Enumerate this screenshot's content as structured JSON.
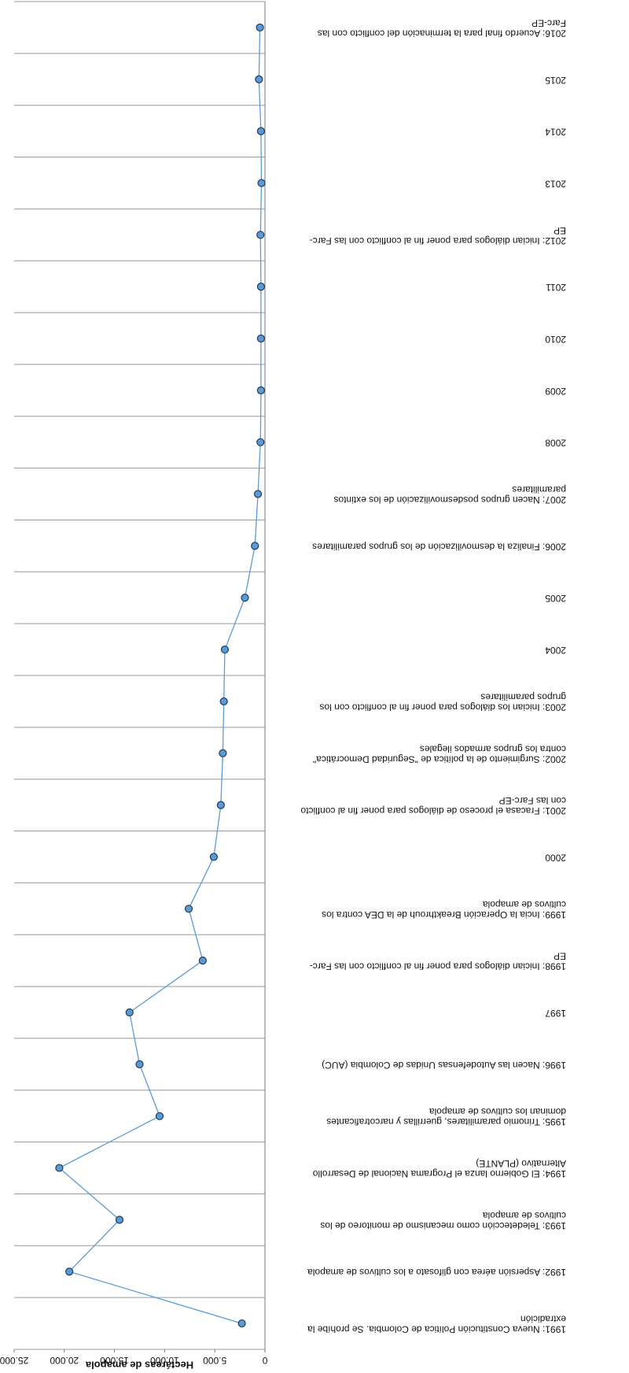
{
  "chart_data": {
    "type": "line",
    "rotated": "180deg",
    "ylabel": "Hectáreas de amapola",
    "ylim": [
      0,
      25000
    ],
    "yticks": [
      {
        "v": 0,
        "label": "0"
      },
      {
        "v": 5000,
        "label": "5.000"
      },
      {
        "v": 10000,
        "label": "10.000"
      },
      {
        "v": 15000,
        "label": "15.000"
      },
      {
        "v": 20000,
        "label": "20.000"
      },
      {
        "v": 25000,
        "label": "25.000"
      }
    ],
    "grid": true,
    "legend": "none",
    "colors": {
      "line": "#5b9bd5",
      "marker_fill": "#5b9bd5",
      "marker_stroke": "#1f3a5a",
      "grid": "#9a9a9a"
    },
    "categories": [
      [
        "1991: Nueva Constitución Política de Colombia. Se prohíbe la",
        "extradición"
      ],
      [
        "1992: Aspersión aérea con glifosato a los cultivos de amapola"
      ],
      [
        "1993: Teledetección como mecanismo de monitoreo de los",
        "cultivos de amapola"
      ],
      [
        "1994: El Gobierno lanza el Programa Nacional de Desarrollo",
        "Alternativo (PLANTE)"
      ],
      [
        "1995: Trinomio paramilitares, guerrillas y narcotraficantes",
        "dominan los cultivos de amapola"
      ],
      [
        "1996: Nacen las Autodefensas Unidas de Colombia (AUC)"
      ],
      [
        "1997"
      ],
      [
        "1998: Inician diálogos para poner fin al conflicto con las Farc-",
        "EP"
      ],
      [
        "1999: Incia la Operación Breakthrouh de la DEA contra los",
        "cultivos de amapola"
      ],
      [
        "2000"
      ],
      [
        "2001: Fracasa el proceso de diálogos para poner fin al conflicto",
        "con las Farc-EP"
      ],
      [
        "2002: Surgimiento de la política de \"Seguridad Democrática\"",
        "contra los grupos armados ilegales"
      ],
      [
        "2003: Inician los diálogos para poner fin al conflicto con los",
        "grupos paramilitares"
      ],
      [
        "2004"
      ],
      [
        "2005"
      ],
      [
        "2006: Finaliza la desmovilización de los grupos paramilitares"
      ],
      [
        "2007: Nacen grupos posdesmovilización de los extintos",
        "paramilitares"
      ],
      [
        "2008"
      ],
      [
        "2009"
      ],
      [
        "2010"
      ],
      [
        "2011"
      ],
      [
        "2012: Inician diálogos para poner fin al conflicto con las Farc-",
        "EP"
      ],
      [
        "2013"
      ],
      [
        "2014"
      ],
      [
        "2015"
      ],
      [
        "2016: Acuerdo final para la terminación del conflicto con las",
        "Farc-EP"
      ]
    ],
    "series": [
      {
        "values": [
          2300,
          19500,
          14500,
          20500,
          10500,
          12500,
          13500,
          6200,
          7600,
          5100,
          4400,
          4200,
          4100,
          4000,
          2000,
          1000,
          700,
          450,
          400,
          400,
          400,
          450,
          350,
          400,
          600,
          500
        ]
      }
    ]
  }
}
